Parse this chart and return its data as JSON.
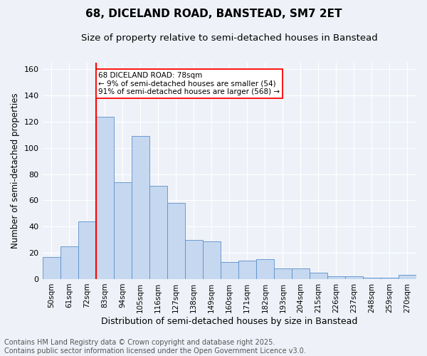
{
  "title1": "68, DICELAND ROAD, BANSTEAD, SM7 2ET",
  "title2": "Size of property relative to semi-detached houses in Banstead",
  "xlabel": "Distribution of semi-detached houses by size in Banstead",
  "ylabel": "Number of semi-detached properties",
  "categories": [
    "50sqm",
    "61sqm",
    "72sqm",
    "83sqm",
    "94sqm",
    "105sqm",
    "116sqm",
    "127sqm",
    "138sqm",
    "149sqm",
    "160sqm",
    "171sqm",
    "182sqm",
    "193sqm",
    "204sqm",
    "215sqm",
    "226sqm",
    "237sqm",
    "248sqm",
    "259sqm",
    "270sqm"
  ],
  "values": [
    17,
    25,
    44,
    124,
    74,
    109,
    71,
    58,
    30,
    29,
    13,
    14,
    15,
    8,
    8,
    5,
    2,
    2,
    1,
    1,
    3
  ],
  "bar_color": "#c5d8f0",
  "bar_edge_color": "#5b8fc9",
  "annotation_line1": "68 DICELAND ROAD: 78sqm",
  "annotation_line2": "← 9% of semi-detached houses are smaller (54)",
  "annotation_line3": "91% of semi-detached houses are larger (568) →",
  "annotation_box_color": "#ffffff",
  "annotation_border_color": "red",
  "red_line_color": "red",
  "ylim": [
    0,
    165
  ],
  "yticks": [
    0,
    20,
    40,
    60,
    80,
    100,
    120,
    140,
    160
  ],
  "footer_line1": "Contains HM Land Registry data © Crown copyright and database right 2025.",
  "footer_line2": "Contains public sector information licensed under the Open Government Licence v3.0.",
  "bg_color": "#eef2f8",
  "grid_color": "#ffffff",
  "title1_fontsize": 11,
  "title2_fontsize": 9.5,
  "xlabel_fontsize": 9,
  "ylabel_fontsize": 8.5,
  "footer_fontsize": 7,
  "tick_fontsize": 7.5,
  "ytick_fontsize": 8,
  "annot_fontsize": 7.5
}
